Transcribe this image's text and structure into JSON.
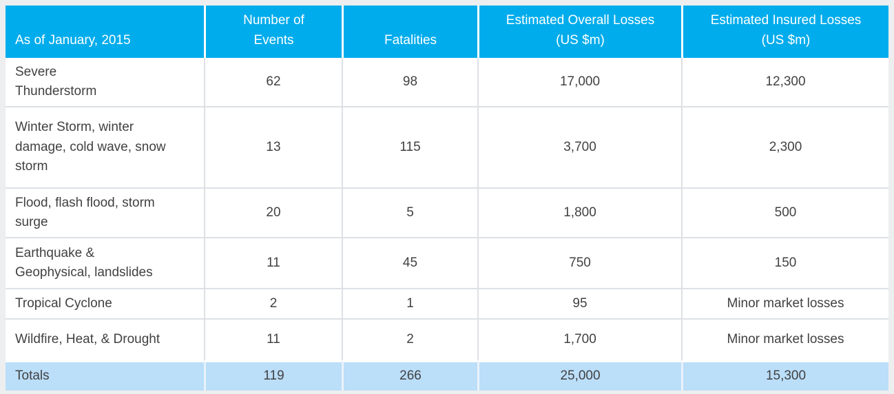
{
  "table": {
    "columns": [
      "As of January, 2015",
      "Number of\nEvents",
      "Fatalities",
      "Estimated Overall Losses\n(US $m)",
      "Estimated Insured Losses\n(US $m)"
    ],
    "rows": [
      {
        "label": "Severe\nThunderstorm",
        "values": [
          "62",
          "98",
          "17,000",
          "12,300"
        ]
      },
      {
        "label": "Winter Storm, winter\ndamage, cold wave, snow\nstorm",
        "values": [
          "13",
          "115",
          "3,700",
          "2,300"
        ]
      },
      {
        "label": "Flood, flash flood, storm\nsurge",
        "values": [
          "20",
          "5",
          "1,800",
          "500"
        ]
      },
      {
        "label": "Earthquake &\nGeophysical, landslides",
        "values": [
          "11",
          "45",
          "750",
          "150"
        ]
      },
      {
        "label": "Tropical Cyclone",
        "values": [
          "2",
          "1",
          "95",
          "Minor market losses"
        ]
      },
      {
        "label": "Wildfire, Heat, & Drought",
        "values": [
          "11",
          "2",
          "1,700",
          "Minor market losses"
        ]
      }
    ],
    "totals": {
      "label": "Totals",
      "values": [
        "119",
        "266",
        "25,000",
        "15,300"
      ]
    }
  },
  "colors": {
    "header_bg": "#00ACEC",
    "header_text": "#FFFFFF",
    "totals_bg": "#BBDEF9",
    "frame_bg": "#EDEEEF",
    "body_text": "#414142",
    "grid_line": "#DDE0E4"
  },
  "chart_data": {
    "type": "table",
    "title": "As of January, 2015",
    "columns": [
      "Number of Events",
      "Fatalities",
      "Estimated Overall Losses (US $m)",
      "Estimated Insured Losses (US $m)"
    ],
    "rows": [
      {
        "category": "Severe Thunderstorm",
        "number_of_events": 62,
        "fatalities": 98,
        "estimated_overall_losses_usd_m": 17000,
        "estimated_insured_losses_usd_m": 12300
      },
      {
        "category": "Winter Storm, winter damage, cold wave, snow storm",
        "number_of_events": 13,
        "fatalities": 115,
        "estimated_overall_losses_usd_m": 3700,
        "estimated_insured_losses_usd_m": 2300
      },
      {
        "category": "Flood, flash flood, storm surge",
        "number_of_events": 20,
        "fatalities": 5,
        "estimated_overall_losses_usd_m": 1800,
        "estimated_insured_losses_usd_m": 500
      },
      {
        "category": "Earthquake & Geophysical, landslides",
        "number_of_events": 11,
        "fatalities": 45,
        "estimated_overall_losses_usd_m": 750,
        "estimated_insured_losses_usd_m": 150
      },
      {
        "category": "Tropical Cyclone",
        "number_of_events": 2,
        "fatalities": 1,
        "estimated_overall_losses_usd_m": 95,
        "estimated_insured_losses_usd_m": "Minor market losses"
      },
      {
        "category": "Wildfire, Heat, & Drought",
        "number_of_events": 11,
        "fatalities": 2,
        "estimated_overall_losses_usd_m": 1700,
        "estimated_insured_losses_usd_m": "Minor market losses"
      }
    ],
    "totals": {
      "category": "Totals",
      "number_of_events": 119,
      "fatalities": 266,
      "estimated_overall_losses_usd_m": 25000,
      "estimated_insured_losses_usd_m": 15300
    }
  }
}
